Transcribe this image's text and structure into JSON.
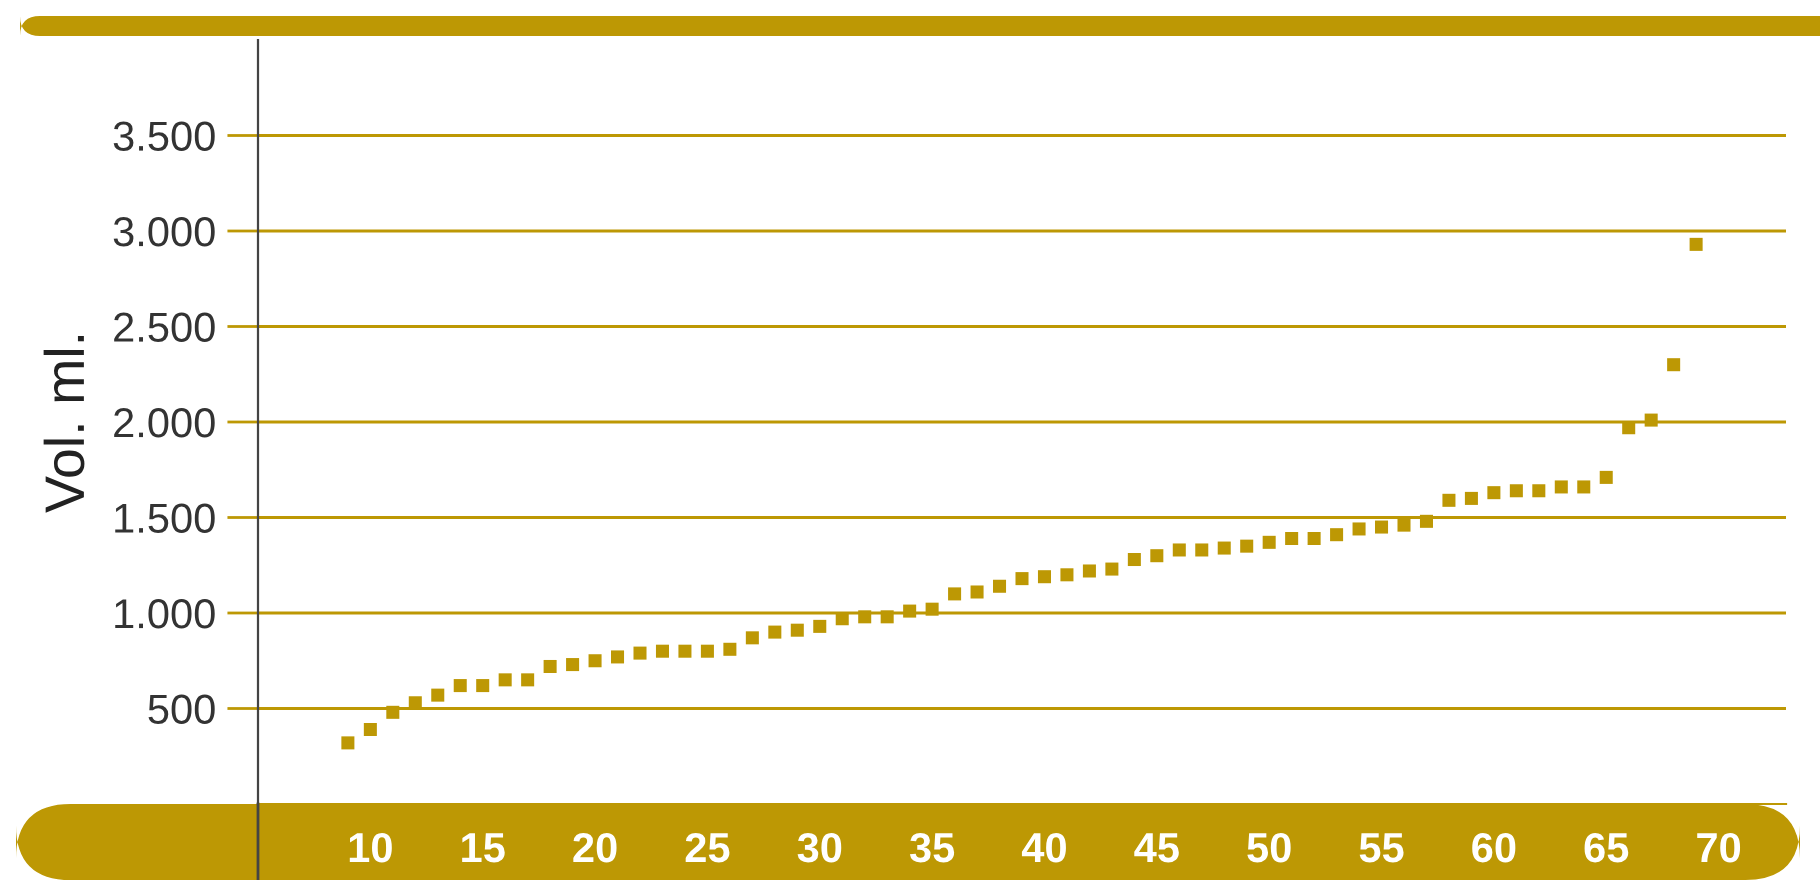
{
  "chart_data": {
    "type": "scatter",
    "ylabel": "Vol. ml.",
    "x": [
      9,
      10,
      11,
      12,
      13,
      14,
      15,
      16,
      17,
      18,
      19,
      20,
      21,
      22,
      23,
      24,
      25,
      26,
      27,
      28,
      29,
      30,
      31,
      32,
      33,
      34,
      35,
      36,
      37,
      38,
      39,
      40,
      41,
      42,
      43,
      44,
      45,
      46,
      47,
      48,
      49,
      50,
      51,
      52,
      53,
      54,
      55,
      56,
      57,
      58,
      59,
      60,
      61,
      62,
      63,
      64,
      65,
      66,
      67,
      68,
      69
    ],
    "values": [
      320,
      390,
      480,
      530,
      570,
      620,
      620,
      650,
      650,
      720,
      730,
      750,
      770,
      790,
      800,
      800,
      800,
      810,
      870,
      900,
      910,
      930,
      970,
      980,
      980,
      1010,
      1020,
      1100,
      1110,
      1140,
      1180,
      1190,
      1200,
      1220,
      1230,
      1280,
      1300,
      1330,
      1330,
      1340,
      1350,
      1370,
      1390,
      1390,
      1410,
      1440,
      1450,
      1460,
      1480,
      1590,
      1600,
      1630,
      1640,
      1640,
      1660,
      1660,
      1710,
      1970,
      2010,
      2300,
      2930
    ],
    "color": "#bd9804",
    "marker": "square",
    "xlim": [
      5,
      73
    ],
    "xticks": [
      10,
      15,
      20,
      25,
      30,
      35,
      40,
      45,
      50,
      55,
      60,
      65,
      70
    ],
    "ylim": [
      0,
      4000
    ],
    "yticks": [
      {
        "value": 500,
        "label": "500"
      },
      {
        "value": 1000,
        "label": "1.000"
      },
      {
        "value": 1500,
        "label": "1.500"
      },
      {
        "value": 2000,
        "label": "2.000"
      },
      {
        "value": 2500,
        "label": "2.500"
      },
      {
        "value": 3000,
        "label": "3.000"
      },
      {
        "value": 3500,
        "label": "3.500"
      }
    ],
    "grid": "y"
  }
}
